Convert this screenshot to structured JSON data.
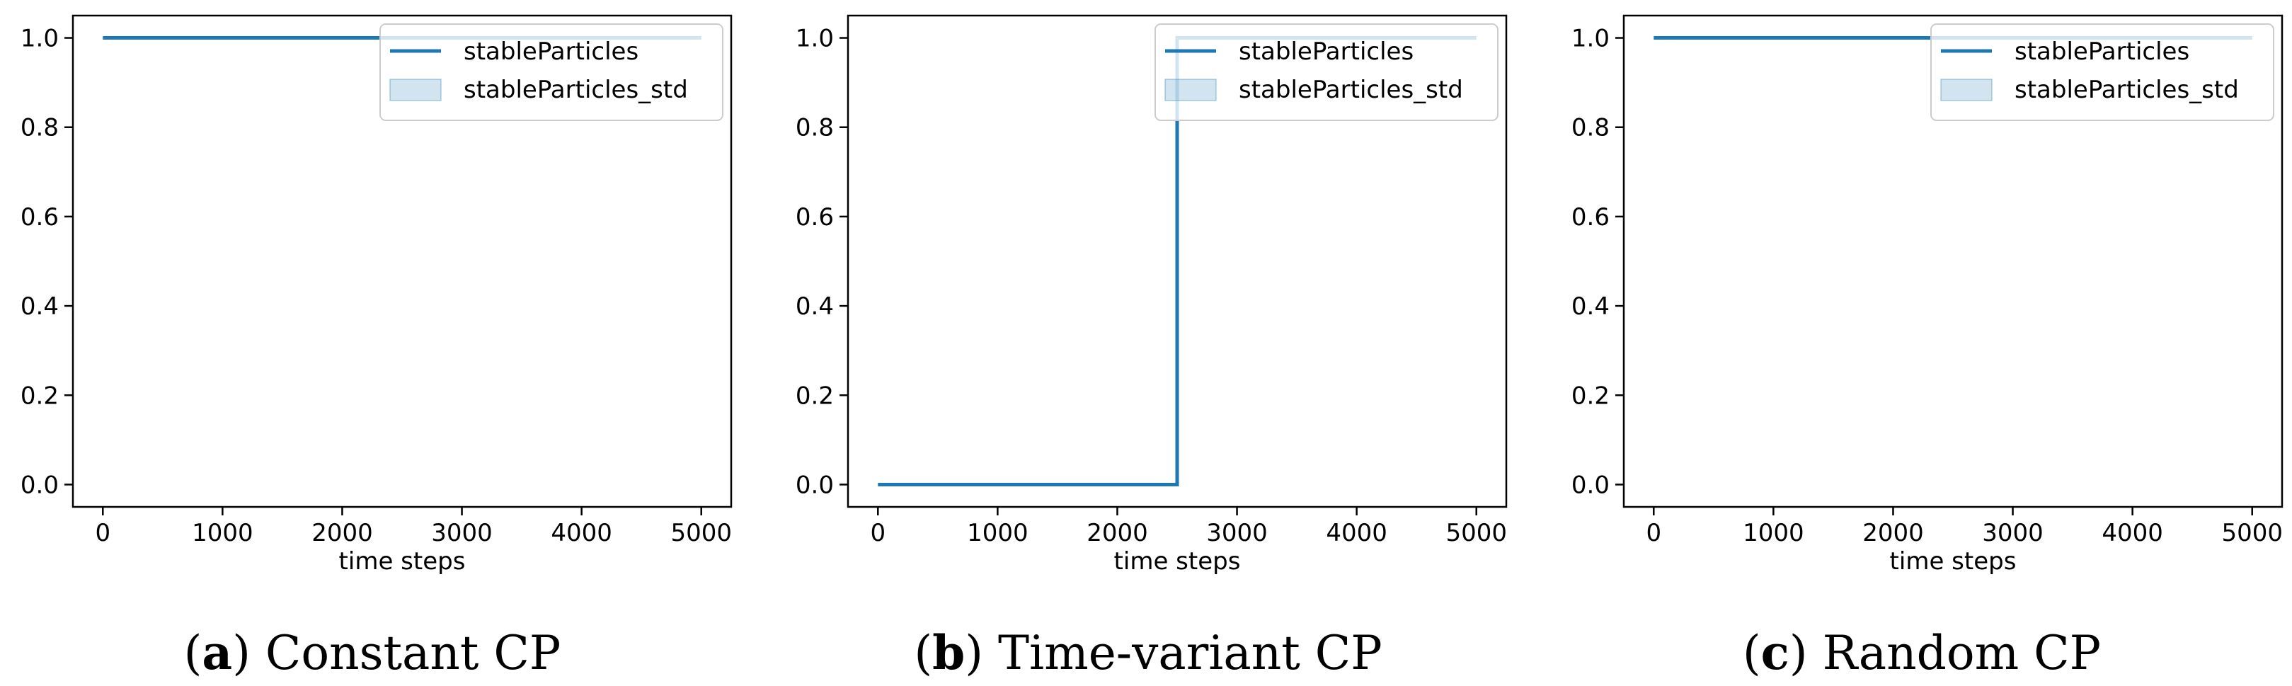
{
  "chart_data": [
    {
      "type": "line",
      "caption_letter": "a",
      "caption_text": "Constant CP",
      "xlabel": "time steps",
      "ylabel": "",
      "xlim": [
        -250,
        5250
      ],
      "ylim": [
        -0.05,
        1.05
      ],
      "xticks": [
        0,
        1000,
        2000,
        3000,
        4000,
        5000
      ],
      "yticks": [
        "0.0",
        "0.2",
        "0.4",
        "0.6",
        "0.8",
        "1.0"
      ],
      "legend_position": "upper right",
      "series": [
        {
          "name": "stableParticles",
          "x": [
            0,
            5000
          ],
          "y": [
            1.0,
            1.0
          ],
          "color": "#1f77b4"
        }
      ],
      "band": {
        "name": "stableParticles_std",
        "color": "#1f77b4"
      }
    },
    {
      "type": "line",
      "caption_letter": "b",
      "caption_text": "Time-variant CP",
      "xlabel": "time steps",
      "ylabel": "",
      "xlim": [
        -250,
        5250
      ],
      "ylim": [
        -0.05,
        1.05
      ],
      "xticks": [
        0,
        1000,
        2000,
        3000,
        4000,
        5000
      ],
      "yticks": [
        "0.0",
        "0.2",
        "0.4",
        "0.6",
        "0.8",
        "1.0"
      ],
      "legend_position": "upper right",
      "series": [
        {
          "name": "stableParticles",
          "x": [
            0,
            2500,
            2500,
            5000
          ],
          "y": [
            0.0,
            0.0,
            1.0,
            1.0
          ],
          "color": "#1f77b4"
        }
      ],
      "band": {
        "name": "stableParticles_std",
        "color": "#1f77b4"
      }
    },
    {
      "type": "line",
      "caption_letter": "c",
      "caption_text": "Random CP",
      "xlabel": "time steps",
      "ylabel": "",
      "xlim": [
        -250,
        5250
      ],
      "ylim": [
        -0.05,
        1.05
      ],
      "xticks": [
        0,
        1000,
        2000,
        3000,
        4000,
        5000
      ],
      "yticks": [
        "0.0",
        "0.2",
        "0.4",
        "0.6",
        "0.8",
        "1.0"
      ],
      "legend_position": "upper right",
      "series": [
        {
          "name": "stableParticles",
          "x": [
            0,
            5000
          ],
          "y": [
            1.0,
            1.0
          ],
          "color": "#1f77b4"
        }
      ],
      "band": {
        "name": "stableParticles_std",
        "color": "#1f77b4"
      }
    }
  ]
}
